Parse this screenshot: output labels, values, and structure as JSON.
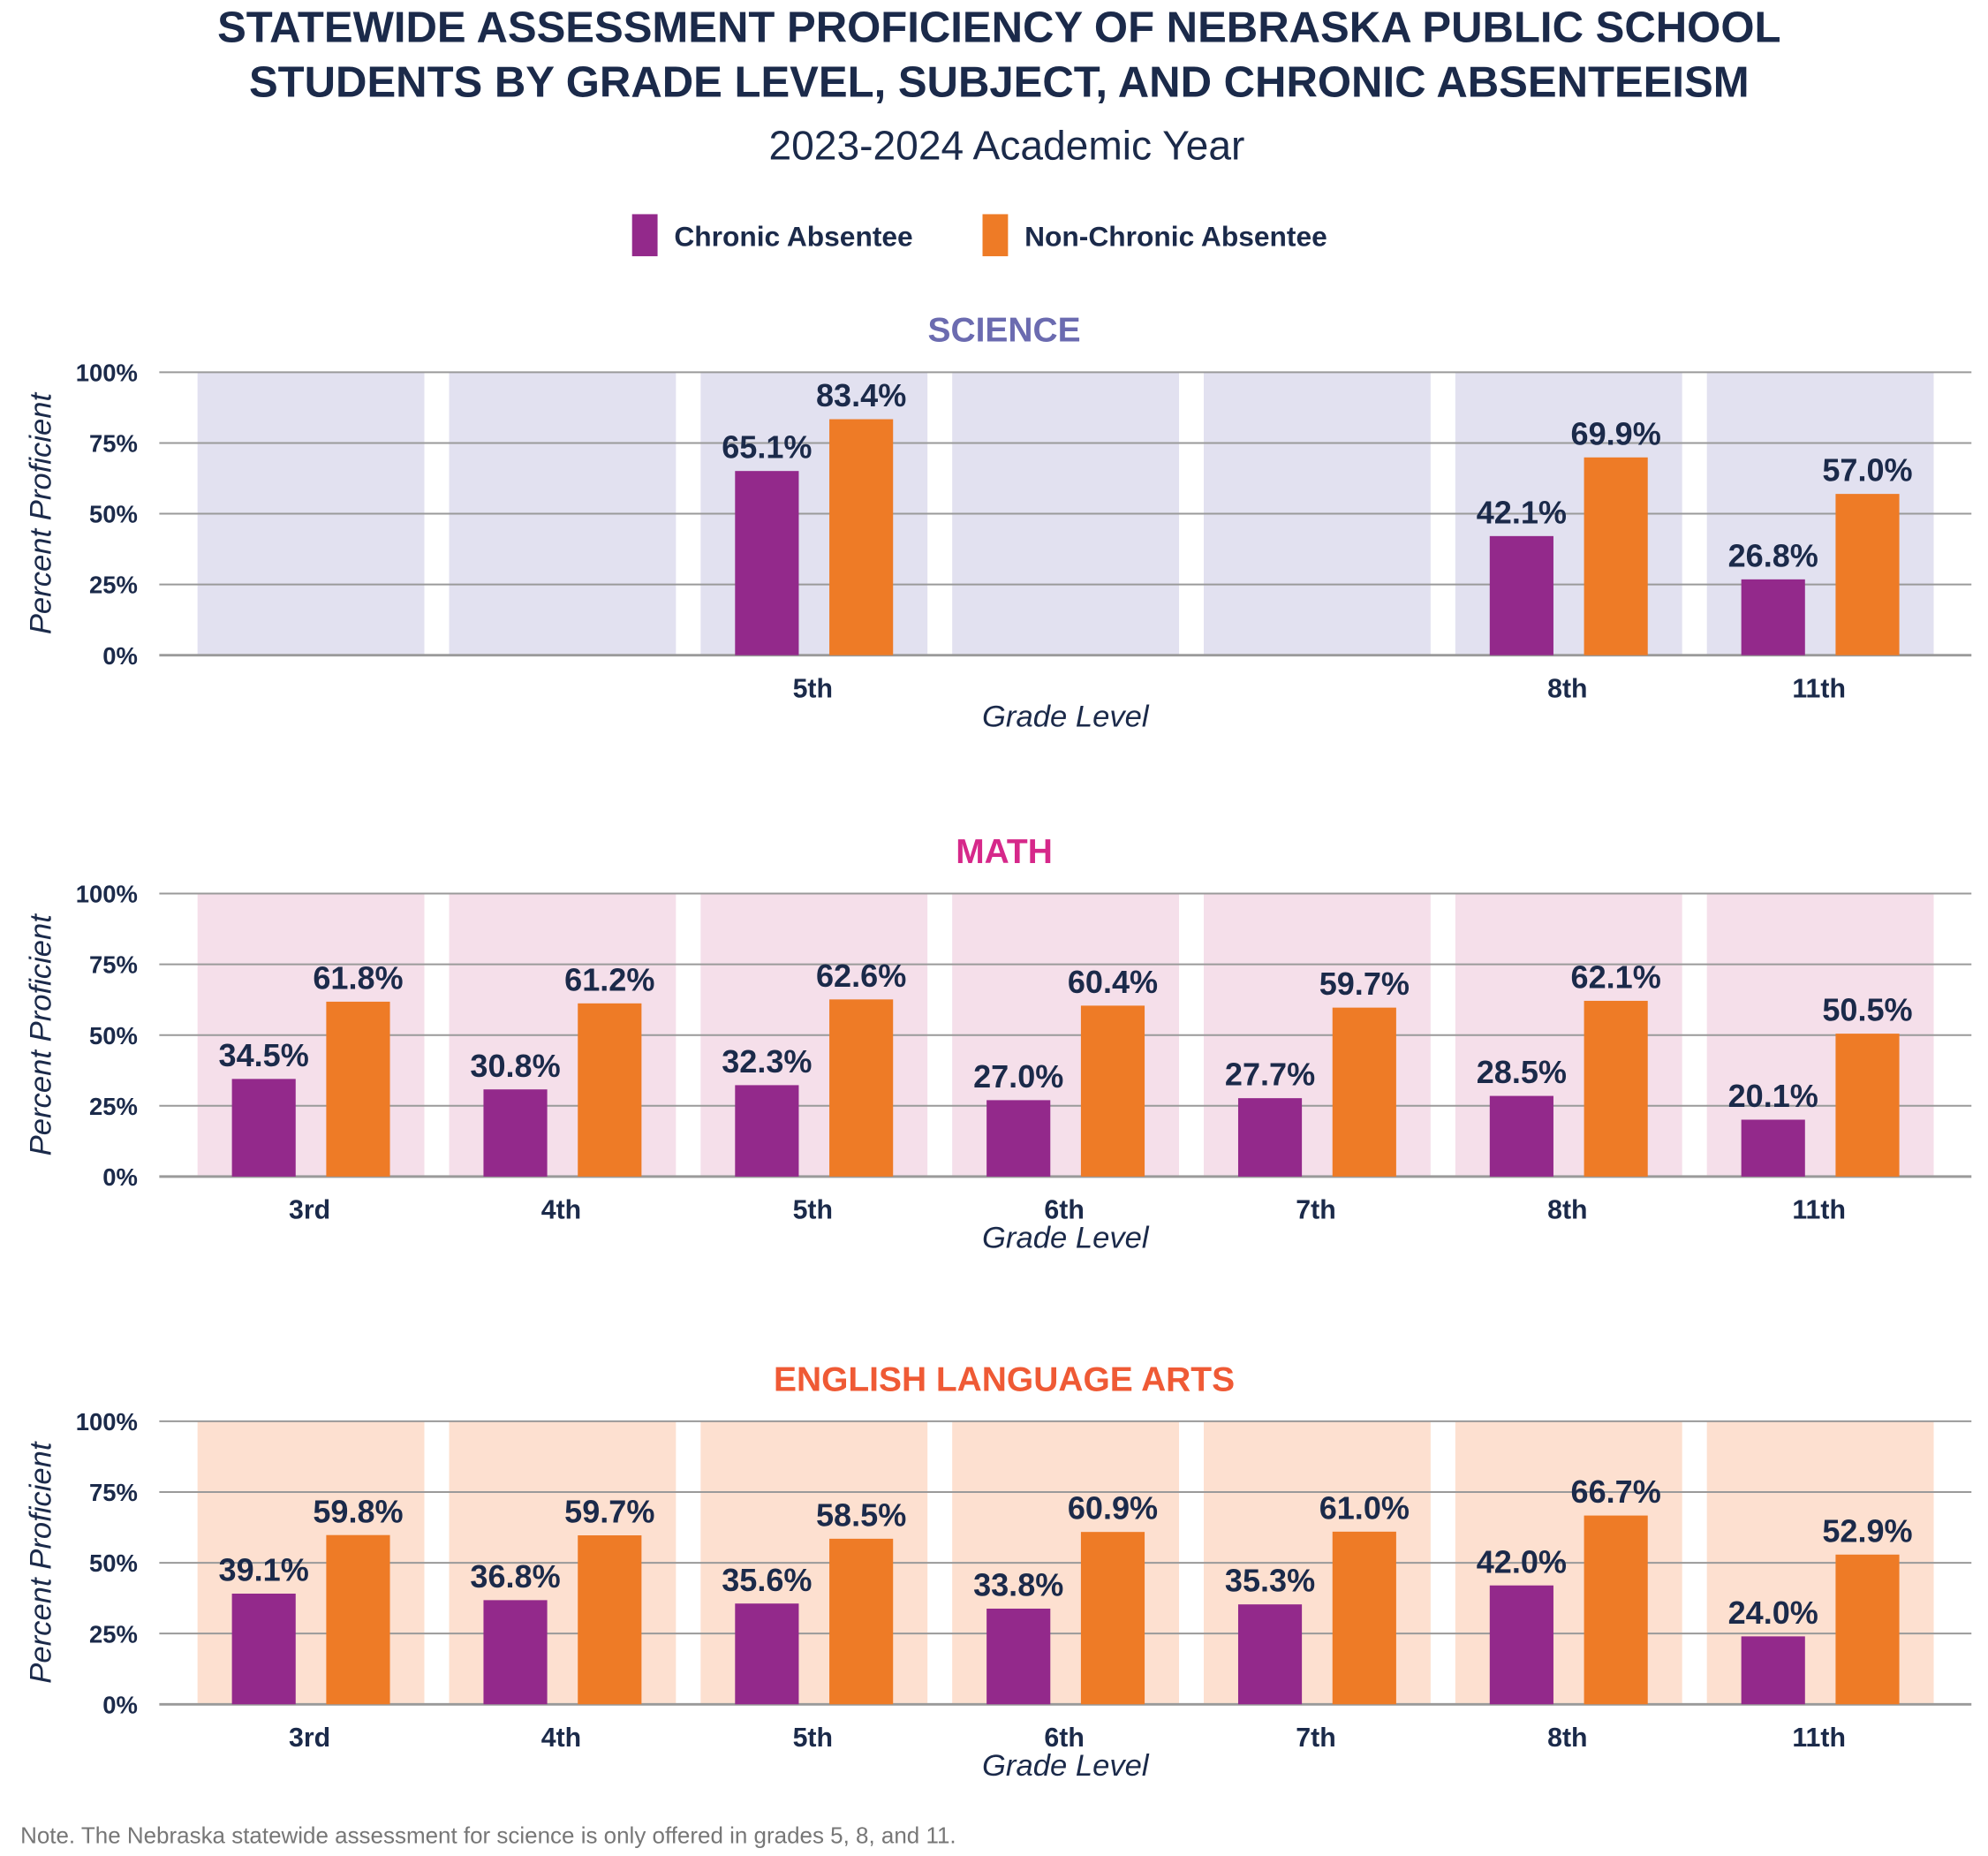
{
  "title_line1": "STATEWIDE ASSESSMENT PROFICIENCY OF NEBRASKA PUBLIC SCHOOL",
  "title_line2": "STUDENTS BY GRADE LEVEL, SUBJECT, AND CHRONIC ABSENTEEISM",
  "subtitle": "2023-2024 Academic Year",
  "note": "Note. The Nebraska statewide assessment for science is only offered in grades 5, 8, and 11.",
  "legend": [
    {
      "label": "Chronic Absentee",
      "color": "#93298b"
    },
    {
      "label": "Non-Chronic Absentee",
      "color": "#ee7b26"
    }
  ],
  "chart_data": [
    {
      "type": "bar",
      "title": "SCIENCE",
      "title_color": "#6b6bb0",
      "band_color": "#e2e1f0",
      "xlabel": "Grade Level",
      "ylabel": "Percent Proficient",
      "ylim": [
        0,
        100
      ],
      "yticks": [
        "0%",
        "25%",
        "50%",
        "75%",
        "100%"
      ],
      "grid": true,
      "categories": [
        "",
        "",
        "5th",
        "",
        "",
        "8th",
        "11th"
      ],
      "series": [
        {
          "name": "Chronic Absentee",
          "values": [
            null,
            null,
            65.1,
            null,
            null,
            42.1,
            26.8
          ],
          "labels": [
            "",
            "",
            "65.1%",
            "",
            "",
            "42.1%",
            "26.8%"
          ]
        },
        {
          "name": "Non-Chronic Absentee",
          "values": [
            null,
            null,
            83.4,
            null,
            null,
            69.9,
            57.0
          ],
          "labels": [
            "",
            "",
            "83.4%",
            "",
            "",
            "69.9%",
            "57.0%"
          ]
        }
      ]
    },
    {
      "type": "bar",
      "title": "MATH",
      "title_color": "#d6288a",
      "band_color": "#f5dfea",
      "xlabel": "Grade Level",
      "ylabel": "Percent Proficient",
      "ylim": [
        0,
        100
      ],
      "yticks": [
        "0%",
        "25%",
        "50%",
        "75%",
        "100%"
      ],
      "grid": true,
      "categories": [
        "3rd",
        "4th",
        "5th",
        "6th",
        "7th",
        "8th",
        "11th"
      ],
      "series": [
        {
          "name": "Chronic Absentee",
          "values": [
            34.5,
            30.8,
            32.3,
            27.0,
            27.7,
            28.5,
            20.1
          ],
          "labels": [
            "34.5%",
            "30.8%",
            "32.3%",
            "27.0%",
            "27.7%",
            "28.5%",
            "20.1%"
          ]
        },
        {
          "name": "Non-Chronic Absentee",
          "values": [
            61.8,
            61.2,
            62.6,
            60.4,
            59.7,
            62.1,
            50.5
          ],
          "labels": [
            "61.8%",
            "61.2%",
            "62.6%",
            "60.4%",
            "59.7%",
            "62.1%",
            "50.5%"
          ]
        }
      ]
    },
    {
      "type": "bar",
      "title": "ENGLISH LANGUAGE ARTS",
      "title_color": "#ef5a35",
      "band_color": "#fde0d0",
      "xlabel": "Grade Level",
      "ylabel": "Percent Proficient",
      "ylim": [
        0,
        100
      ],
      "yticks": [
        "0%",
        "25%",
        "50%",
        "75%",
        "100%"
      ],
      "grid": true,
      "categories": [
        "3rd",
        "4th",
        "5th",
        "6th",
        "7th",
        "8th",
        "11th"
      ],
      "series": [
        {
          "name": "Chronic Absentee",
          "values": [
            39.1,
            36.8,
            35.6,
            33.8,
            35.3,
            42.0,
            24.0
          ],
          "labels": [
            "39.1%",
            "36.8%",
            "35.6%",
            "33.8%",
            "35.3%",
            "42.0%",
            "24.0%"
          ]
        },
        {
          "name": "Non-Chronic Absentee",
          "values": [
            59.8,
            59.7,
            58.5,
            60.9,
            61.0,
            66.7,
            52.9
          ],
          "labels": [
            "59.8%",
            "59.7%",
            "58.5%",
            "60.9%",
            "61.0%",
            "66.7%",
            "52.9%"
          ]
        }
      ]
    }
  ]
}
